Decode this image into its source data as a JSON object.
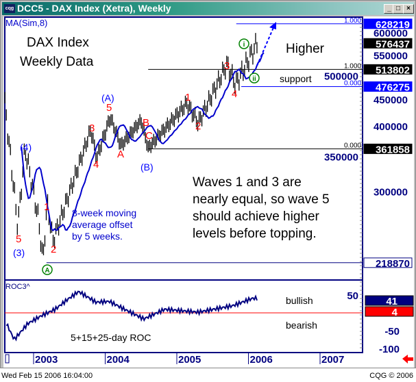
{
  "window": {
    "title": "DCC5 - DAX Index (Xetra), Weekly",
    "logo": "cqg",
    "buttons": [
      "minimize",
      "maximize",
      "close"
    ]
  },
  "status": {
    "datetime": "Wed Feb 15 2006 16:04:00",
    "copyright": "CQG © 2006"
  },
  "chart_data": [
    {
      "type": "line",
      "study_label": "MA(Sim,8)",
      "scale": "log",
      "ylim": [
        205000,
        640000
      ],
      "y_ticks": [
        600000,
        550000,
        500000,
        450000,
        400000,
        350000,
        300000
      ],
      "x_ticks": [
        "2003",
        "2004",
        "2005",
        "2006",
        "2007"
      ],
      "xlim": [
        2002.6,
        2007.6
      ],
      "series": [
        {
          "key": "close",
          "color": "#000000",
          "points": [
            [
              2002.6,
              440000
            ],
            [
              2002.71,
              317000
            ],
            [
              2002.78,
              257000
            ],
            [
              2002.88,
              363000
            ],
            [
              2003.07,
              265000
            ],
            [
              2003.13,
              221000
            ],
            [
              2003.19,
              285000
            ],
            [
              2003.27,
              241000
            ],
            [
              2003.8,
              394000
            ],
            [
              2003.88,
              347000
            ],
            [
              2004.07,
              416000
            ],
            [
              2004.22,
              367000
            ],
            [
              2004.5,
              410000
            ],
            [
              2004.6,
              363000
            ],
            [
              2005.14,
              442000
            ],
            [
              2005.3,
              406000
            ],
            [
              2005.7,
              526000
            ],
            [
              2005.82,
              481000
            ],
            [
              2006.12,
              576437
            ]
          ]
        },
        {
          "key": "ma",
          "color": "#0000cc"
        }
      ],
      "price_tags": [
        {
          "value": "628219",
          "bg": "#0000ff",
          "fg": "#ffffff",
          "level": 628219
        },
        {
          "value": "576437",
          "bg": "#000000",
          "fg": "#ffffff",
          "level": 576437
        },
        {
          "value": "513802",
          "bg": "#000000",
          "fg": "#ffffff",
          "level": 513802
        },
        {
          "value": "476275",
          "bg": "#0000ff",
          "fg": "#ffffff",
          "level": 476275
        },
        {
          "value": "361858",
          "bg": "#000000",
          "fg": "#ffffff",
          "level": 361858
        },
        {
          "value": "218870",
          "bg": "#ffffff",
          "fg": "#000080",
          "level": 218870
        }
      ],
      "fib_lines": [
        {
          "label": "1.000",
          "level": 628219,
          "color": "#0000ff",
          "from": 2005.83
        },
        {
          "label": "1.000",
          "level": 513802,
          "color": "#000000",
          "from": 2004.6
        },
        {
          "label": "0.000",
          "level": 476275,
          "color": "#0000ff",
          "from": 2005.9
        },
        {
          "label": "0.000",
          "level": 361858,
          "color": "#000000",
          "from": 2004.6
        },
        {
          "label": "",
          "level": 218870,
          "color": "#000080",
          "from": 2003.18
        }
      ],
      "annotations": {
        "title1": "DAX Index",
        "title2": "Weekly Data",
        "higher": "Higher",
        "support": "support",
        "note": [
          "Waves 1 and 3 are",
          "nearly equal, so wave 5",
          "should achieve higher",
          "levels before topping."
        ],
        "ma_note": [
          "8-week moving",
          "average offset",
          "by 5 weeks."
        ],
        "waves_red": [
          "5",
          "1",
          "2",
          "3",
          "4",
          "5",
          "A",
          "B",
          "C",
          "1",
          "2",
          "3",
          "4"
        ],
        "waves_blue": [
          "(3)",
          "(4)",
          "(A)",
          "(B)"
        ],
        "waves_green": [
          "A",
          "i",
          "ii"
        ]
      }
    },
    {
      "type": "line",
      "study_label": "ROC3^",
      "y_ticks": [
        50,
        -50,
        -100
      ],
      "ylim": [
        -130,
        90
      ],
      "value_tags": [
        {
          "value": "41",
          "bg": "#000080"
        },
        {
          "value": "4",
          "bg": "#ff0000"
        }
      ],
      "zero_line_color": "#ff0000",
      "bullish": "bullish",
      "bearish": "bearish",
      "label": "5+15+25-day ROC",
      "points": [
        [
          2002.62,
          -30
        ],
        [
          2002.73,
          -75
        ],
        [
          2002.92,
          -30
        ],
        [
          2003.11,
          -8
        ],
        [
          2003.3,
          10
        ],
        [
          2003.49,
          40
        ],
        [
          2003.63,
          60
        ],
        [
          2003.87,
          30
        ],
        [
          2004.06,
          32
        ],
        [
          2004.25,
          12
        ],
        [
          2004.54,
          -17
        ],
        [
          2004.83,
          10
        ],
        [
          2005.3,
          2
        ],
        [
          2005.78,
          20
        ],
        [
          2006.06,
          41
        ],
        [
          2006.12,
          41
        ]
      ]
    }
  ]
}
